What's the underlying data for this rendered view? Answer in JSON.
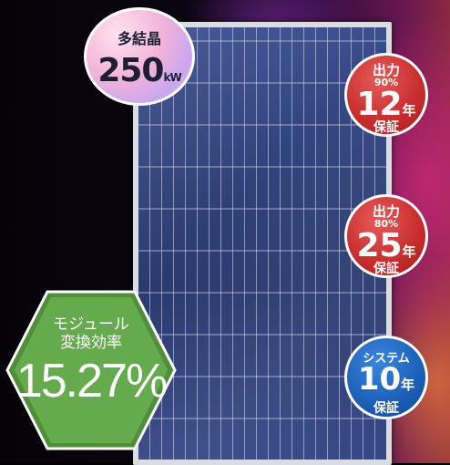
{
  "poly_badge": {
    "line1": "多結晶",
    "value": "250",
    "unit": "kW"
  },
  "badge_12": {
    "line1": "出力",
    "line2": "90%",
    "years": "12",
    "year_unit": "年",
    "footer": "保証"
  },
  "badge_25": {
    "line1": "出力",
    "line2": "80%",
    "years": "25",
    "year_unit": "年",
    "footer": "保証"
  },
  "badge_system": {
    "line1": "システム",
    "years": "10",
    "year_unit": "年",
    "footer": "保証"
  },
  "efficiency": {
    "line1": "モジュール",
    "line2": "変換効率",
    "value": "15.27%"
  },
  "colors": {
    "red_badge": "#c62c2c",
    "blue_badge": "#1b5fb7",
    "hexagon": "#5fa347",
    "panel": "#31437c"
  }
}
